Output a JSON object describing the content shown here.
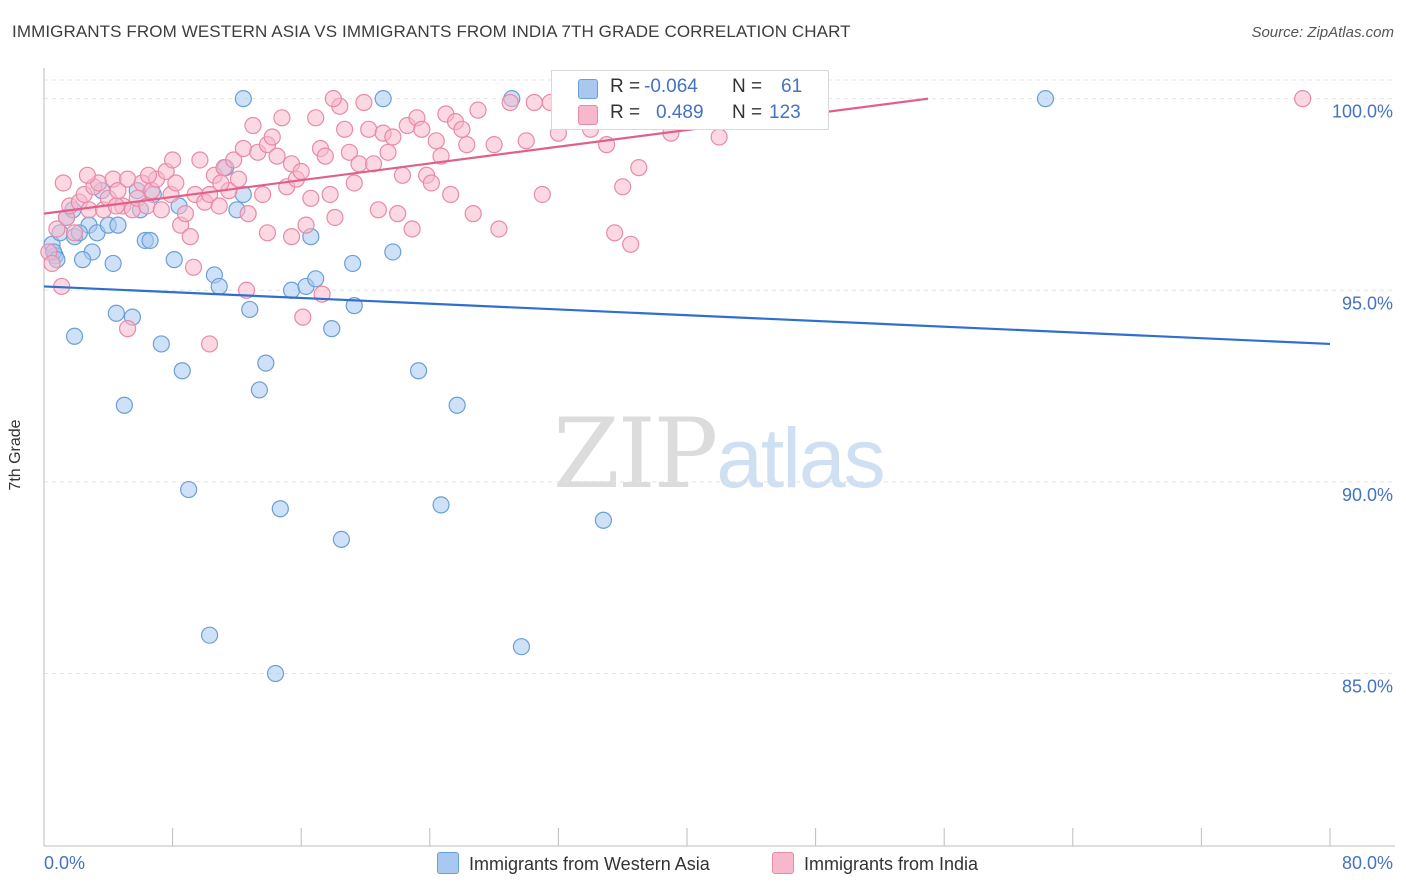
{
  "title": "IMMIGRANTS FROM WESTERN ASIA VS IMMIGRANTS FROM INDIA 7TH GRADE CORRELATION CHART",
  "source": "Source: ZipAtlas.com",
  "watermark": {
    "zip": "ZIP",
    "atlas": "atlas"
  },
  "legend_top": {
    "rows": [
      {
        "r_label": "R =",
        "r_value": "-0.064",
        "n_label": "N =",
        "n_value": "61"
      },
      {
        "r_label": "R =",
        "r_value": "0.489",
        "n_label": "N =",
        "n_value": "123"
      }
    ]
  },
  "colors": {
    "blue_fill": "#a8c8ef",
    "blue_stroke": "#6a9fd8",
    "blue_line": "#2f6fcf",
    "pink_fill": "#f7b8cb",
    "pink_stroke": "#e98aa8",
    "pink_line": "#e0608a",
    "tick_text": "#4472c4",
    "grid": "#e4e4e4"
  },
  "chart_data": {
    "type": "scatter",
    "title": "IMMIGRANTS FROM WESTERN ASIA VS IMMIGRANTS FROM INDIA 7TH GRADE CORRELATION CHART",
    "xlabel": "",
    "ylabel": "7th Grade",
    "xlim": [
      0,
      80
    ],
    "ylim": [
      80.5,
      100.8
    ],
    "x_tick_labels": [
      "0.0%",
      "80.0%"
    ],
    "y_ticks": [
      85,
      90,
      95,
      100
    ],
    "y_tick_labels": [
      "85.0%",
      "90.0%",
      "95.0%",
      "100.0%"
    ],
    "grid": true,
    "legend_position": "bottom",
    "series": [
      {
        "name": "Immigrants from Western Asia",
        "color": "#a8c8ef",
        "trend": {
          "x": [
            0,
            80
          ],
          "y": [
            95.1,
            93.6
          ]
        },
        "points": [
          [
            0.5,
            96.2
          ],
          [
            0.7,
            95.9
          ],
          [
            0.6,
            96.0
          ],
          [
            1.0,
            96.5
          ],
          [
            1.4,
            96.9
          ],
          [
            1.8,
            97.1
          ],
          [
            1.9,
            96.4
          ],
          [
            2.8,
            96.7
          ],
          [
            3.0,
            96.0
          ],
          [
            3.3,
            96.5
          ],
          [
            2.2,
            96.5
          ],
          [
            2.4,
            95.8
          ],
          [
            1.9,
            93.8
          ],
          [
            4.3,
            95.7
          ],
          [
            4.5,
            94.4
          ],
          [
            5.0,
            92.0
          ],
          [
            5.5,
            94.3
          ],
          [
            5.8,
            97.6
          ],
          [
            6.0,
            97.1
          ],
          [
            6.3,
            96.3
          ],
          [
            6.6,
            96.3
          ],
          [
            7.3,
            93.6
          ],
          [
            8.1,
            95.8
          ],
          [
            8.6,
            92.9
          ],
          [
            9.0,
            89.8
          ],
          [
            10.3,
            86.0
          ],
          [
            10.6,
            95.4
          ],
          [
            10.9,
            95.1
          ],
          [
            11.3,
            98.2
          ],
          [
            12.4,
            97.5
          ],
          [
            12.8,
            94.5
          ],
          [
            13.4,
            92.4
          ],
          [
            13.8,
            93.1
          ],
          [
            14.7,
            89.3
          ],
          [
            15.4,
            95.0
          ],
          [
            16.3,
            95.1
          ],
          [
            16.6,
            96.4
          ],
          [
            17.9,
            94.0
          ],
          [
            18.5,
            88.5
          ],
          [
            19.2,
            95.7
          ],
          [
            19.3,
            94.6
          ],
          [
            21.1,
            100.0
          ],
          [
            21.7,
            96.0
          ],
          [
            23.3,
            92.9
          ],
          [
            24.7,
            89.4
          ],
          [
            25.7,
            92.0
          ],
          [
            29.7,
            85.7
          ],
          [
            34.8,
            89.0
          ],
          [
            12.4,
            100.0
          ],
          [
            29.1,
            100.0
          ],
          [
            41.6,
            100.0
          ],
          [
            62.3,
            100.0
          ],
          [
            3.6,
            97.6
          ],
          [
            4.0,
            96.7
          ],
          [
            8.4,
            97.2
          ],
          [
            14.4,
            85.0
          ],
          [
            12.0,
            97.1
          ],
          [
            6.8,
            97.5
          ],
          [
            4.6,
            96.7
          ],
          [
            16.9,
            95.3
          ],
          [
            0.8,
            95.8
          ]
        ]
      },
      {
        "name": "Immigrants from India",
        "color": "#f7b8cb",
        "trend": {
          "x": [
            0,
            55
          ],
          "y": [
            97.0,
            100.0
          ]
        },
        "points": [
          [
            0.3,
            96.0
          ],
          [
            0.5,
            95.7
          ],
          [
            0.8,
            96.6
          ],
          [
            1.1,
            95.1
          ],
          [
            1.4,
            96.9
          ],
          [
            1.6,
            97.2
          ],
          [
            1.9,
            96.5
          ],
          [
            2.2,
            97.3
          ],
          [
            2.5,
            97.5
          ],
          [
            2.8,
            97.1
          ],
          [
            3.1,
            97.7
          ],
          [
            3.4,
            97.8
          ],
          [
            3.7,
            97.1
          ],
          [
            4.0,
            97.4
          ],
          [
            4.3,
            97.9
          ],
          [
            4.6,
            97.6
          ],
          [
            4.9,
            97.2
          ],
          [
            5.2,
            97.9
          ],
          [
            5.5,
            97.1
          ],
          [
            5.8,
            97.4
          ],
          [
            6.1,
            97.8
          ],
          [
            6.4,
            97.2
          ],
          [
            6.7,
            97.6
          ],
          [
            7.0,
            97.9
          ],
          [
            7.3,
            97.1
          ],
          [
            7.6,
            98.1
          ],
          [
            7.9,
            97.5
          ],
          [
            8.2,
            97.8
          ],
          [
            8.5,
            96.7
          ],
          [
            8.8,
            97.0
          ],
          [
            9.1,
            96.4
          ],
          [
            9.4,
            97.5
          ],
          [
            9.7,
            98.4
          ],
          [
            10.0,
            97.3
          ],
          [
            10.3,
            97.5
          ],
          [
            10.6,
            98.0
          ],
          [
            10.9,
            97.2
          ],
          [
            11.2,
            98.2
          ],
          [
            11.5,
            97.6
          ],
          [
            11.8,
            98.4
          ],
          [
            12.1,
            97.9
          ],
          [
            12.4,
            98.7
          ],
          [
            12.7,
            97.0
          ],
          [
            13.0,
            99.3
          ],
          [
            13.3,
            98.6
          ],
          [
            13.6,
            97.5
          ],
          [
            13.9,
            98.8
          ],
          [
            14.2,
            99.0
          ],
          [
            14.5,
            98.5
          ],
          [
            14.8,
            99.5
          ],
          [
            15.1,
            97.7
          ],
          [
            15.4,
            98.3
          ],
          [
            15.7,
            97.9
          ],
          [
            16.0,
            98.1
          ],
          [
            16.3,
            96.7
          ],
          [
            16.6,
            97.4
          ],
          [
            16.9,
            99.5
          ],
          [
            17.2,
            98.7
          ],
          [
            17.5,
            98.5
          ],
          [
            17.8,
            97.5
          ],
          [
            18.1,
            96.9
          ],
          [
            18.4,
            99.8
          ],
          [
            18.7,
            99.2
          ],
          [
            19.0,
            98.6
          ],
          [
            19.3,
            97.8
          ],
          [
            19.6,
            98.3
          ],
          [
            19.9,
            99.9
          ],
          [
            20.2,
            99.2
          ],
          [
            20.5,
            98.3
          ],
          [
            20.8,
            97.1
          ],
          [
            21.1,
            99.1
          ],
          [
            21.4,
            98.6
          ],
          [
            21.7,
            99.0
          ],
          [
            22.0,
            97.0
          ],
          [
            22.3,
            98.0
          ],
          [
            22.6,
            99.3
          ],
          [
            22.9,
            96.6
          ],
          [
            23.2,
            99.5
          ],
          [
            23.5,
            99.2
          ],
          [
            23.8,
            98.0
          ],
          [
            24.1,
            97.8
          ],
          [
            24.4,
            98.9
          ],
          [
            24.7,
            98.5
          ],
          [
            25.0,
            99.6
          ],
          [
            25.3,
            97.5
          ],
          [
            25.6,
            99.4
          ],
          [
            26.3,
            98.8
          ],
          [
            26.7,
            97.0
          ],
          [
            27.0,
            99.7
          ],
          [
            28.0,
            98.8
          ],
          [
            28.3,
            96.6
          ],
          [
            29.0,
            99.9
          ],
          [
            30.0,
            98.9
          ],
          [
            31.0,
            97.5
          ],
          [
            31.5,
            99.9
          ],
          [
            32.0,
            99.1
          ],
          [
            33.0,
            99.8
          ],
          [
            34.0,
            99.2
          ],
          [
            35.0,
            98.8
          ],
          [
            35.5,
            96.5
          ],
          [
            36.0,
            97.7
          ],
          [
            36.5,
            96.2
          ],
          [
            37.0,
            98.2
          ],
          [
            38.0,
            99.4
          ],
          [
            39.0,
            99.1
          ],
          [
            40.0,
            99.5
          ],
          [
            41.0,
            99.8
          ],
          [
            42.0,
            99.0
          ],
          [
            78.3,
            100.0
          ],
          [
            5.2,
            94.0
          ],
          [
            10.3,
            93.6
          ],
          [
            15.4,
            96.4
          ],
          [
            16.1,
            94.3
          ],
          [
            17.3,
            94.9
          ],
          [
            12.6,
            95.0
          ],
          [
            9.3,
            95.6
          ],
          [
            13.9,
            96.5
          ],
          [
            1.2,
            97.8
          ],
          [
            2.7,
            98.0
          ],
          [
            26.0,
            99.2
          ],
          [
            30.5,
            99.9
          ],
          [
            18.0,
            100.0
          ],
          [
            8.0,
            98.4
          ],
          [
            6.5,
            98.0
          ],
          [
            11.0,
            97.8
          ],
          [
            4.5,
            97.2
          ]
        ]
      }
    ]
  }
}
